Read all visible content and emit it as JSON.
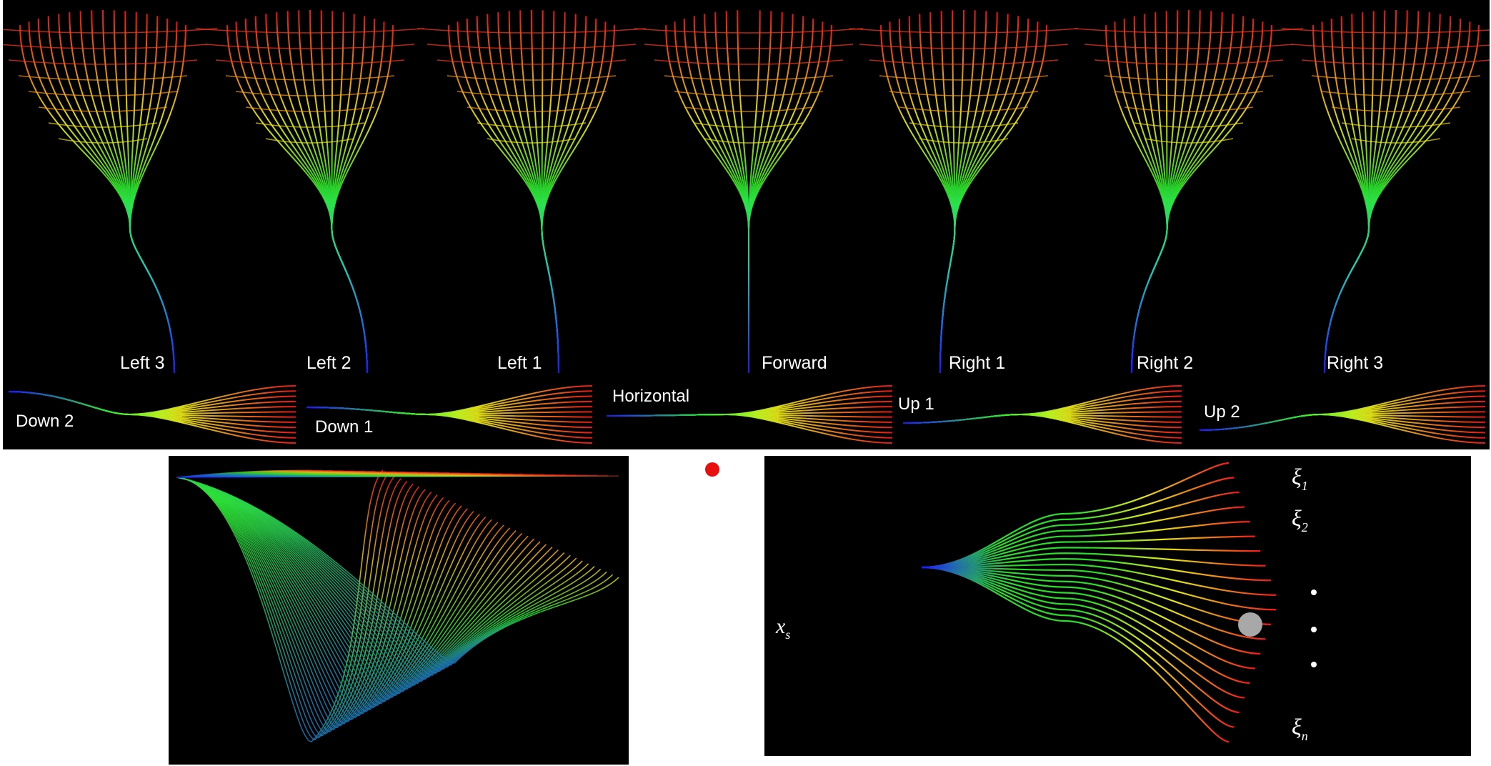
{
  "top": {
    "vertical_labels": [
      "Left 3",
      "Left 2",
      "Left 1",
      "Forward",
      "Right 1",
      "Right 2",
      "Right 3"
    ],
    "horizontal_labels": [
      "Down 2",
      "Down 1",
      "Horizontal",
      "Up 1",
      "Up 2"
    ]
  },
  "bottom_right": {
    "source_label": "x",
    "source_sub": "s",
    "targets": [
      {
        "sym": "ξ",
        "sub": "1"
      },
      {
        "sym": "ξ",
        "sub": "2"
      },
      {
        "sym": "ξ",
        "sub": "n"
      }
    ]
  },
  "colors": {
    "gradient": [
      "#1a1aff",
      "#2ee82e",
      "#f2f21a",
      "#ff1a1a"
    ],
    "background": "#000000",
    "marker": "#e80f0f",
    "obstacle": "#a8a8a8"
  }
}
